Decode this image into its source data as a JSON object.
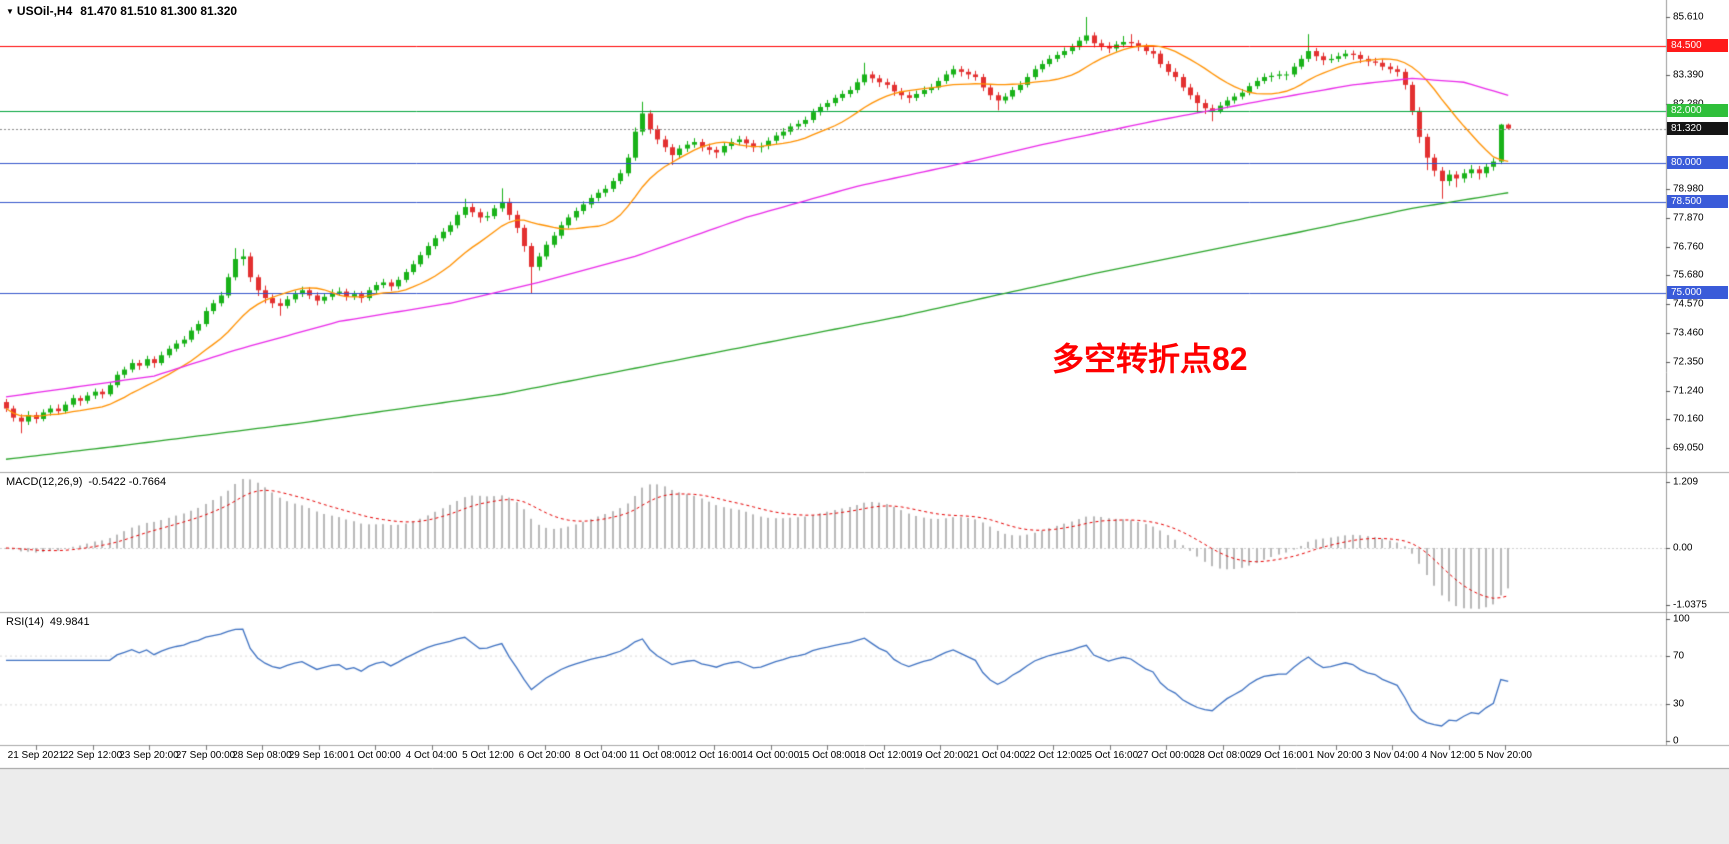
{
  "header": {
    "marker": "▼"
  },
  "chart_data": {
    "type": "candlestick",
    "symbol": "USOil-,H4",
    "ohlc_text": "81.470 81.510 81.300 81.320",
    "annotation": {
      "text": "多空转折点82",
      "color": "#ff0000"
    },
    "y_ticks": [
      "85.610",
      "83.390",
      "82.280",
      "78.980",
      "77.870",
      "76.760",
      "75.680",
      "74.570",
      "73.460",
      "72.350",
      "71.240",
      "70.160",
      "69.050"
    ],
    "price_lines": [
      {
        "label": "84.500",
        "value": 84.5,
        "line_color": "#ff0000",
        "badge_color": "#ff1a1a"
      },
      {
        "label": "82.000",
        "value": 82.0,
        "line_color": "#00a43a",
        "badge_color": "#2fbf3a"
      },
      {
        "label": "80.000",
        "value": 80.0,
        "line_color": "#3355cc",
        "badge_color": "#3a5bd9"
      },
      {
        "label": "78.500",
        "value": 78.5,
        "line_color": "#3355cc",
        "badge_color": "#3a5bd9"
      },
      {
        "label": "75.000",
        "value": 75.0,
        "line_color": "#3355cc",
        "badge_color": "#3a5bd9"
      }
    ],
    "current_price": {
      "label": "81.320",
      "value": 81.32,
      "badge_color": "#141414",
      "line_color": "#8a8a8a"
    },
    "colors": {
      "up": "#19b219",
      "down": "#e33030"
    },
    "moving_averages": [
      {
        "name": "ma-fast",
        "color": "#ff9100",
        "type": "sma",
        "period": 13
      },
      {
        "name": "ma-mid",
        "color": "#e928e9",
        "type": "points",
        "points": [
          [
            0,
            71.0
          ],
          [
            20,
            71.8
          ],
          [
            31,
            72.8
          ],
          [
            45,
            73.9
          ],
          [
            60,
            74.6
          ],
          [
            72,
            75.4
          ],
          [
            85,
            76.4
          ],
          [
            100,
            77.9
          ],
          [
            115,
            79.1
          ],
          [
            128,
            79.9
          ],
          [
            140,
            80.7
          ],
          [
            155,
            81.6
          ],
          [
            170,
            82.4
          ],
          [
            182,
            83.0
          ],
          [
            190,
            83.25
          ],
          [
            197,
            83.1
          ],
          [
            203,
            82.6
          ]
        ]
      },
      {
        "name": "ma-slow",
        "color": "#2aa52a",
        "type": "points",
        "points": [
          [
            0,
            68.6
          ],
          [
            15,
            69.1
          ],
          [
            40,
            70.0
          ],
          [
            67,
            71.1
          ],
          [
            94,
            72.6
          ],
          [
            121,
            74.1
          ],
          [
            148,
            75.8
          ],
          [
            175,
            77.35
          ],
          [
            190,
            78.25
          ],
          [
            203,
            78.85
          ]
        ]
      }
    ],
    "macd": {
      "label": "MACD(12,26,9)",
      "values_text": "-0.5422 -0.7664",
      "fast": 12,
      "slow": 26,
      "signal": 9,
      "ticks": [
        "1.209",
        "0.00",
        "-1.0375"
      ],
      "hist_color": "#b9b9b9",
      "signal_color": "#e60000"
    },
    "rsi": {
      "label": "RSI(14)",
      "value_text": "49.9841",
      "period": 14,
      "ticks": [
        "100",
        "70",
        "30",
        "0"
      ],
      "levels": [
        70,
        30
      ],
      "color": "#3f72c2"
    },
    "x_labels": [
      "21 Sep 2021",
      "22 Sep 12:00",
      "23 Sep 20:00",
      "27 Sep 00:00",
      "28 Sep 08:00",
      "29 Sep 16:00",
      "1 Oct 00:00",
      "4 Oct 04:00",
      "5 Oct 12:00",
      "6 Oct 20:00",
      "8 Oct 04:00",
      "11 Oct 08:00",
      "12 Oct 16:00",
      "14 Oct 00:00",
      "15 Oct 08:00",
      "18 Oct 12:00",
      "19 Oct 20:00",
      "21 Oct 04:00",
      "22 Oct 12:00",
      "25 Oct 16:00",
      "27 Oct 00:00",
      "28 Oct 08:00",
      "29 Oct 16:00",
      "1 Nov 20:00",
      "3 Nov 04:00",
      "4 Nov 12:00",
      "5 Nov 20:00"
    ],
    "candles": [
      [
        70.8,
        70.92,
        70.42,
        70.55
      ],
      [
        70.55,
        70.66,
        70.05,
        70.2
      ],
      [
        70.2,
        70.33,
        69.6,
        70.05
      ],
      [
        70.05,
        70.45,
        69.92,
        70.3
      ],
      [
        70.3,
        70.41,
        69.98,
        70.15
      ],
      [
        70.15,
        70.52,
        70.06,
        70.4
      ],
      [
        70.4,
        70.68,
        70.28,
        70.55
      ],
      [
        70.55,
        70.71,
        70.31,
        70.45
      ],
      [
        70.45,
        70.82,
        70.36,
        70.7
      ],
      [
        70.7,
        71.08,
        70.6,
        70.95
      ],
      [
        70.95,
        71.05,
        70.66,
        70.85
      ],
      [
        70.85,
        71.18,
        70.74,
        71.05
      ],
      [
        71.05,
        71.32,
        70.92,
        71.2
      ],
      [
        71.2,
        71.31,
        70.94,
        71.1
      ],
      [
        71.1,
        71.56,
        71.02,
        71.45
      ],
      [
        71.45,
        71.98,
        71.36,
        71.85
      ],
      [
        71.85,
        72.16,
        71.72,
        72.05
      ],
      [
        72.05,
        72.44,
        71.94,
        72.3
      ],
      [
        72.3,
        72.42,
        72.04,
        72.2
      ],
      [
        72.2,
        72.58,
        72.1,
        72.45
      ],
      [
        72.45,
        72.56,
        72.12,
        72.3
      ],
      [
        72.3,
        72.74,
        72.21,
        72.6
      ],
      [
        72.6,
        72.97,
        72.5,
        72.85
      ],
      [
        72.85,
        73.18,
        72.74,
        73.05
      ],
      [
        73.05,
        73.34,
        72.92,
        73.2
      ],
      [
        73.2,
        73.68,
        73.1,
        73.55
      ],
      [
        73.55,
        73.93,
        73.42,
        73.8
      ],
      [
        73.8,
        74.44,
        73.7,
        74.3
      ],
      [
        74.3,
        74.73,
        74.18,
        74.6
      ],
      [
        74.6,
        75.04,
        74.48,
        74.9
      ],
      [
        74.9,
        75.74,
        74.8,
        75.6
      ],
      [
        75.6,
        76.72,
        75.48,
        76.3
      ],
      [
        76.3,
        76.68,
        76.05,
        76.4
      ],
      [
        76.4,
        76.55,
        75.42,
        75.6
      ],
      [
        75.6,
        75.7,
        74.88,
        75.1
      ],
      [
        75.1,
        75.28,
        74.6,
        74.8
      ],
      [
        74.8,
        74.94,
        74.42,
        74.6
      ],
      [
        74.6,
        74.78,
        74.12,
        74.5
      ],
      [
        74.5,
        74.88,
        74.4,
        74.75
      ],
      [
        74.75,
        75.08,
        74.62,
        74.95
      ],
      [
        74.95,
        75.24,
        74.84,
        75.1
      ],
      [
        75.1,
        75.22,
        74.76,
        74.9
      ],
      [
        74.9,
        75.02,
        74.52,
        74.7
      ],
      [
        74.7,
        74.98,
        74.58,
        74.85
      ],
      [
        74.85,
        75.14,
        74.72,
        75.0
      ],
      [
        75.0,
        75.21,
        74.88,
        75.05
      ],
      [
        75.05,
        75.16,
        74.7,
        74.85
      ],
      [
        74.85,
        75.08,
        74.73,
        74.95
      ],
      [
        74.95,
        75.06,
        74.62,
        74.8
      ],
      [
        74.8,
        75.22,
        74.7,
        75.1
      ],
      [
        75.1,
        75.42,
        74.99,
        75.3
      ],
      [
        75.3,
        75.54,
        75.18,
        75.4
      ],
      [
        75.4,
        75.52,
        75.08,
        75.25
      ],
      [
        75.25,
        75.62,
        75.14,
        75.5
      ],
      [
        75.5,
        75.92,
        75.4,
        75.8
      ],
      [
        75.8,
        76.24,
        75.7,
        76.1
      ],
      [
        76.1,
        76.58,
        76.0,
        76.45
      ],
      [
        76.45,
        76.94,
        76.33,
        76.8
      ],
      [
        76.8,
        77.22,
        76.68,
        77.1
      ],
      [
        77.1,
        77.49,
        76.98,
        77.35
      ],
      [
        77.35,
        77.74,
        77.22,
        77.6
      ],
      [
        77.6,
        78.13,
        77.48,
        78.0
      ],
      [
        78.0,
        78.62,
        77.88,
        78.3
      ],
      [
        78.3,
        78.44,
        77.92,
        78.1
      ],
      [
        78.1,
        78.24,
        77.7,
        77.9
      ],
      [
        77.9,
        78.12,
        77.76,
        77.95
      ],
      [
        77.95,
        78.38,
        77.84,
        78.25
      ],
      [
        78.25,
        79.02,
        78.12,
        78.5
      ],
      [
        78.5,
        78.64,
        77.8,
        78.0
      ],
      [
        78.0,
        78.16,
        77.3,
        77.5
      ],
      [
        77.5,
        77.62,
        76.58,
        76.8
      ],
      [
        76.8,
        76.92,
        74.96,
        76.0
      ],
      [
        76.0,
        76.54,
        75.86,
        76.4
      ],
      [
        76.4,
        76.98,
        76.28,
        76.85
      ],
      [
        76.85,
        77.34,
        76.74,
        77.2
      ],
      [
        77.2,
        77.74,
        77.08,
        77.6
      ],
      [
        77.6,
        78.02,
        77.48,
        77.9
      ],
      [
        77.9,
        78.28,
        77.78,
        78.15
      ],
      [
        78.15,
        78.52,
        78.02,
        78.4
      ],
      [
        78.4,
        78.78,
        78.26,
        78.65
      ],
      [
        78.65,
        78.98,
        78.52,
        78.85
      ],
      [
        78.85,
        79.14,
        78.7,
        79.0
      ],
      [
        79.0,
        79.42,
        78.88,
        79.3
      ],
      [
        79.3,
        79.74,
        79.18,
        79.6
      ],
      [
        79.6,
        80.34,
        79.48,
        80.2
      ],
      [
        80.2,
        81.36,
        80.08,
        81.2
      ],
      [
        81.2,
        82.35,
        81.06,
        81.9
      ],
      [
        81.9,
        82.02,
        81.12,
        81.3
      ],
      [
        81.3,
        81.44,
        80.72,
        80.9
      ],
      [
        80.9,
        81.04,
        80.42,
        80.6
      ],
      [
        80.6,
        80.72,
        79.92,
        80.3
      ],
      [
        80.3,
        80.68,
        80.16,
        80.55
      ],
      [
        80.55,
        80.84,
        80.42,
        80.7
      ],
      [
        80.7,
        80.95,
        80.58,
        80.8
      ],
      [
        80.8,
        80.92,
        80.44,
        80.6
      ],
      [
        80.6,
        80.74,
        80.32,
        80.5
      ],
      [
        80.5,
        80.62,
        80.18,
        80.4
      ],
      [
        80.4,
        80.78,
        80.28,
        80.65
      ],
      [
        80.65,
        80.94,
        80.52,
        80.8
      ],
      [
        80.8,
        81.04,
        80.68,
        80.9
      ],
      [
        80.9,
        81.02,
        80.56,
        80.75
      ],
      [
        80.75,
        80.88,
        80.42,
        80.6
      ],
      [
        80.6,
        80.78,
        80.4,
        80.65
      ],
      [
        80.65,
        80.98,
        80.52,
        80.85
      ],
      [
        80.85,
        81.18,
        80.73,
        81.05
      ],
      [
        81.05,
        81.34,
        80.92,
        81.2
      ],
      [
        81.2,
        81.52,
        81.08,
        81.4
      ],
      [
        81.4,
        81.64,
        81.28,
        81.5
      ],
      [
        81.5,
        81.78,
        81.38,
        81.65
      ],
      [
        81.65,
        82.08,
        81.54,
        81.95
      ],
      [
        81.95,
        82.28,
        81.82,
        82.15
      ],
      [
        82.15,
        82.42,
        82.02,
        82.3
      ],
      [
        82.3,
        82.62,
        82.18,
        82.5
      ],
      [
        82.5,
        82.78,
        82.38,
        82.65
      ],
      [
        82.65,
        82.94,
        82.52,
        82.8
      ],
      [
        82.8,
        83.24,
        82.68,
        83.1
      ],
      [
        83.1,
        83.85,
        82.98,
        83.4
      ],
      [
        83.4,
        83.52,
        83.08,
        83.25
      ],
      [
        83.25,
        83.38,
        82.92,
        83.1
      ],
      [
        83.1,
        83.24,
        82.86,
        83.0
      ],
      [
        83.0,
        83.12,
        82.58,
        82.75
      ],
      [
        82.75,
        82.88,
        82.44,
        82.6
      ],
      [
        82.6,
        82.74,
        82.3,
        82.5
      ],
      [
        82.5,
        82.78,
        82.38,
        82.65
      ],
      [
        82.65,
        82.94,
        82.54,
        82.8
      ],
      [
        82.8,
        83.04,
        82.68,
        82.9
      ],
      [
        82.9,
        83.28,
        82.8,
        83.15
      ],
      [
        83.15,
        83.54,
        83.04,
        83.4
      ],
      [
        83.4,
        83.74,
        83.28,
        83.6
      ],
      [
        83.6,
        83.72,
        83.32,
        83.5
      ],
      [
        83.5,
        83.62,
        83.22,
        83.4
      ],
      [
        83.4,
        83.54,
        83.16,
        83.3
      ],
      [
        83.3,
        83.42,
        82.76,
        82.9
      ],
      [
        82.9,
        83.02,
        82.42,
        82.6
      ],
      [
        82.6,
        82.72,
        82.02,
        82.4
      ],
      [
        82.4,
        82.68,
        82.28,
        82.55
      ],
      [
        82.55,
        82.92,
        82.44,
        82.8
      ],
      [
        82.8,
        83.14,
        82.7,
        83.0
      ],
      [
        83.0,
        83.44,
        82.9,
        83.3
      ],
      [
        83.3,
        83.74,
        83.2,
        83.6
      ],
      [
        83.6,
        83.94,
        83.48,
        83.8
      ],
      [
        83.8,
        84.14,
        83.7,
        84.0
      ],
      [
        84.0,
        84.28,
        83.88,
        84.15
      ],
      [
        84.15,
        84.44,
        84.04,
        84.3
      ],
      [
        84.3,
        84.58,
        84.18,
        84.45
      ],
      [
        84.45,
        84.84,
        84.34,
        84.7
      ],
      [
        84.7,
        85.61,
        84.58,
        84.9
      ],
      [
        84.9,
        85.02,
        84.44,
        84.6
      ],
      [
        84.6,
        84.74,
        84.32,
        84.5
      ],
      [
        84.5,
        84.64,
        84.22,
        84.4
      ],
      [
        84.4,
        84.68,
        84.28,
        84.55
      ],
      [
        84.55,
        84.88,
        84.44,
        84.65
      ],
      [
        84.65,
        84.95,
        84.48,
        84.6
      ],
      [
        84.6,
        84.72,
        84.3,
        84.45
      ],
      [
        84.45,
        84.58,
        84.16,
        84.3
      ],
      [
        84.3,
        84.44,
        84.02,
        84.2
      ],
      [
        84.2,
        84.32,
        83.66,
        83.8
      ],
      [
        83.8,
        83.92,
        83.36,
        83.5
      ],
      [
        83.5,
        83.64,
        83.14,
        83.3
      ],
      [
        83.3,
        83.42,
        82.76,
        82.9
      ],
      [
        82.9,
        83.04,
        82.44,
        82.6
      ],
      [
        82.6,
        82.72,
        81.92,
        82.3
      ],
      [
        82.3,
        82.44,
        81.88,
        82.1
      ],
      [
        82.1,
        82.24,
        81.6,
        82.0
      ],
      [
        82.0,
        82.34,
        81.9,
        82.2
      ],
      [
        82.2,
        82.54,
        82.1,
        82.4
      ],
      [
        82.4,
        82.68,
        82.28,
        82.55
      ],
      [
        82.55,
        82.84,
        82.44,
        82.7
      ],
      [
        82.7,
        83.08,
        82.6,
        82.95
      ],
      [
        82.95,
        83.28,
        82.84,
        83.15
      ],
      [
        83.15,
        83.44,
        83.04,
        83.3
      ],
      [
        83.3,
        83.48,
        83.12,
        83.35
      ],
      [
        83.35,
        83.54,
        83.22,
        83.4
      ],
      [
        83.4,
        83.52,
        83.18,
        83.4
      ],
      [
        83.4,
        83.84,
        83.3,
        83.7
      ],
      [
        83.7,
        84.14,
        83.6,
        84.0
      ],
      [
        84.0,
        84.95,
        83.88,
        84.3
      ],
      [
        84.3,
        84.42,
        83.92,
        84.1
      ],
      [
        84.1,
        84.24,
        83.76,
        83.95
      ],
      [
        83.95,
        84.18,
        83.84,
        84.0
      ],
      [
        84.0,
        84.24,
        83.88,
        84.1
      ],
      [
        84.1,
        84.34,
        84.0,
        84.2
      ],
      [
        84.2,
        84.32,
        83.96,
        84.15
      ],
      [
        84.15,
        84.28,
        83.84,
        84.0
      ],
      [
        84.0,
        84.12,
        83.72,
        83.9
      ],
      [
        83.9,
        84.04,
        83.74,
        83.85
      ],
      [
        83.85,
        83.98,
        83.56,
        83.7
      ],
      [
        83.7,
        83.84,
        83.44,
        83.6
      ],
      [
        83.6,
        83.74,
        83.32,
        83.5
      ],
      [
        83.5,
        83.62,
        82.82,
        83.0
      ],
      [
        83.0,
        83.12,
        81.84,
        82.0
      ],
      [
        82.0,
        82.14,
        80.76,
        81.0
      ],
      [
        81.0,
        81.12,
        79.72,
        80.2
      ],
      [
        80.2,
        80.34,
        79.48,
        79.7
      ],
      [
        79.7,
        79.84,
        78.62,
        79.3
      ],
      [
        79.3,
        79.72,
        79.12,
        79.55
      ],
      [
        79.55,
        79.68,
        79.06,
        79.4
      ],
      [
        79.4,
        79.76,
        79.24,
        79.6
      ],
      [
        79.6,
        79.92,
        79.42,
        79.75
      ],
      [
        79.75,
        79.88,
        79.36,
        79.6
      ],
      [
        79.6,
        79.98,
        79.44,
        79.85
      ],
      [
        79.85,
        80.18,
        79.7,
        80.05
      ],
      [
        80.05,
        81.5,
        79.95,
        81.47
      ],
      [
        81.47,
        81.51,
        81.3,
        81.32
      ]
    ]
  }
}
